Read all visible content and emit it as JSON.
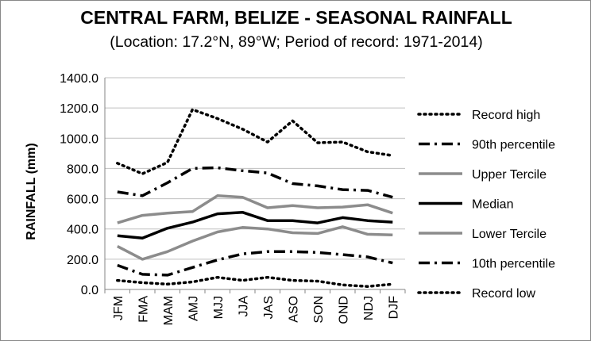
{
  "chart_data": {
    "type": "line",
    "title": "CENTRAL FARM, BELIZE - SEASONAL RAINFALL",
    "subtitle": "(Location: 17.2°N, 89°W; Period of record: 1971-2014)",
    "xlabel": "",
    "ylabel": "RAINFALL (mm)",
    "ylim": [
      0,
      1400
    ],
    "yticks": [
      "0.0",
      "200.0",
      "400.0",
      "600.0",
      "800.0",
      "1000.0",
      "1200.0",
      "1400.0"
    ],
    "categories": [
      "JFM",
      "FMA",
      "MAM",
      "AMJ",
      "MJJ",
      "JJA",
      "JAS",
      "ASO",
      "SON",
      "OND",
      "NDJ",
      "DJF"
    ],
    "grid": true,
    "legend_position": "right",
    "series": [
      {
        "name": "Record high",
        "style": "dotted",
        "color": "#000000",
        "values": [
          835,
          765,
          840,
          1190,
          1130,
          1060,
          975,
          1115,
          970,
          975,
          910,
          885
        ]
      },
      {
        "name": "90th percentile",
        "style": "dashdot",
        "color": "#000000",
        "values": [
          645,
          620,
          705,
          800,
          805,
          785,
          770,
          700,
          685,
          660,
          655,
          610
        ]
      },
      {
        "name": "Upper Tercile",
        "style": "solid",
        "color": "#8c8c8c",
        "values": [
          440,
          490,
          505,
          515,
          620,
          610,
          540,
          555,
          540,
          545,
          560,
          505
        ]
      },
      {
        "name": "Median",
        "style": "solid",
        "color": "#000000",
        "values": [
          355,
          340,
          405,
          445,
          500,
          510,
          455,
          455,
          440,
          475,
          455,
          445
        ]
      },
      {
        "name": "Lower Tercile",
        "style": "solid",
        "color": "#8c8c8c",
        "values": [
          285,
          200,
          250,
          320,
          380,
          410,
          400,
          375,
          370,
          415,
          365,
          360
        ]
      },
      {
        "name": "10th percentile",
        "style": "dashdot",
        "color": "#000000",
        "values": [
          160,
          100,
          95,
          145,
          195,
          235,
          250,
          250,
          245,
          230,
          215,
          175
        ]
      },
      {
        "name": "Record low",
        "style": "dotted",
        "color": "#000000",
        "values": [
          60,
          45,
          35,
          50,
          80,
          60,
          80,
          60,
          55,
          30,
          20,
          35
        ]
      }
    ]
  }
}
